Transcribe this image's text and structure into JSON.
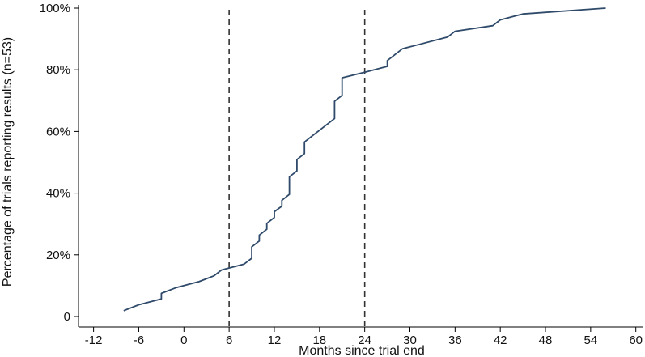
{
  "chart_data": {
    "type": "line",
    "title": "",
    "xlabel": "Months since trial end",
    "ylabel": "Percentage of trials reporting results (n=53)",
    "xlim": [
      -14,
      61
    ],
    "ylim": [
      0,
      100
    ],
    "x_ticks": [
      -12,
      -6,
      0,
      6,
      12,
      18,
      24,
      30,
      36,
      42,
      48,
      54,
      60
    ],
    "x_tick_labels": [
      "-12",
      "-6",
      "0",
      "6",
      "12",
      "18",
      "24",
      "30",
      "36",
      "42",
      "48",
      "54",
      "60"
    ],
    "y_ticks": [
      0,
      20,
      40,
      60,
      80,
      100
    ],
    "y_tick_labels": [
      "0",
      "20%",
      "40%",
      "60%",
      "80%",
      "100%"
    ],
    "reference_lines_x": [
      6,
      24
    ],
    "grid": false,
    "legend": "none",
    "line_color": "#2f4a6a",
    "series": [
      {
        "x": [
          -8,
          -6,
          -3,
          -3,
          -1,
          2,
          4,
          5,
          8,
          9,
          9,
          10,
          10,
          11,
          11,
          12,
          12,
          13,
          13,
          14,
          14,
          15,
          15,
          16,
          16,
          20,
          20,
          21,
          21,
          24,
          27,
          27,
          29,
          35,
          36,
          41,
          42,
          45,
          56
        ],
        "y": [
          1.9,
          3.8,
          5.7,
          7.5,
          9.4,
          11.3,
          13.2,
          15.1,
          17.0,
          18.9,
          22.6,
          24.5,
          26.4,
          28.3,
          30.2,
          32.1,
          34.0,
          35.8,
          37.7,
          39.6,
          45.3,
          47.2,
          50.9,
          52.8,
          56.6,
          64.2,
          69.8,
          71.7,
          77.4,
          79.2,
          81.1,
          83.0,
          86.8,
          90.6,
          92.5,
          94.3,
          96.2,
          98.1,
          100
        ]
      }
    ]
  }
}
